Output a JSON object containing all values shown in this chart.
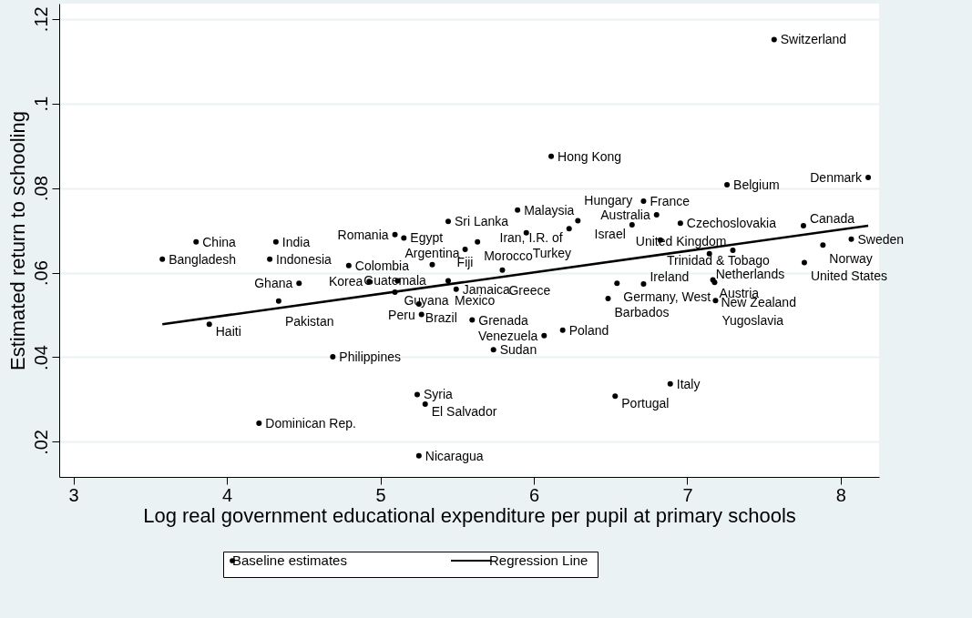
{
  "chart_data": {
    "type": "scatter",
    "xlabel": "Log real government educational expenditure per pupil at primary schools",
    "ylabel": "Estimated return to schooling",
    "xlim": [
      2.907,
      8.25
    ],
    "ylim": [
      0.0117,
      0.1236
    ],
    "xticks": [
      {
        "value": 3,
        "label": "3"
      },
      {
        "value": 4,
        "label": "4"
      },
      {
        "value": 5,
        "label": "5"
      },
      {
        "value": 6,
        "label": "6"
      },
      {
        "value": 7,
        "label": "7"
      },
      {
        "value": 8,
        "label": "8"
      }
    ],
    "yticks": [
      {
        "value": 0.02,
        "label": ".02"
      },
      {
        "value": 0.04,
        "label": ".04"
      },
      {
        "value": 0.06,
        "label": ".06"
      },
      {
        "value": 0.08,
        "label": ".08"
      },
      {
        "value": 0.1,
        "label": ".1"
      },
      {
        "value": 0.12,
        "label": ".12"
      }
    ],
    "grid": "y",
    "legend": "bottom",
    "marker": "circle",
    "series": [
      {
        "name": "Baseline estimates",
        "color": "#000000",
        "x": [
          7.566,
          6.113,
          8.179,
          7.259,
          6.715,
          5.894,
          6.8,
          6.287,
          5.442,
          6.955,
          6.64,
          6.23,
          7.757,
          3.799,
          4.319,
          5.095,
          5.153,
          5.951,
          8.069,
          5.633,
          6.825,
          7.884,
          5.552,
          3.579,
          4.279,
          7.297,
          7.144,
          7.763,
          4.794,
          5.338,
          5.795,
          4.927,
          5.112,
          5.442,
          4.47,
          5.494,
          5.095,
          6.542,
          6.715,
          7.167,
          7.178,
          4.337,
          6.484,
          7.184,
          5.251,
          5.268,
          3.885,
          5.598,
          6.188,
          6.067,
          5.737,
          4.69,
          6.889,
          6.53,
          5.24,
          5.292,
          4.209,
          5.251
        ],
        "values": [
          0.1151,
          0.0875,
          0.0825,
          0.0808,
          0.0769,
          0.0748,
          0.0737,
          0.0723,
          0.0721,
          0.0717,
          0.0713,
          0.0704,
          0.0711,
          0.0673,
          0.0673,
          0.069,
          0.0682,
          0.0694,
          0.0679,
          0.0673,
          0.0677,
          0.0665,
          0.0655,
          0.0632,
          0.0632,
          0.0653,
          0.0645,
          0.0624,
          0.0617,
          0.0619,
          0.0606,
          0.0579,
          0.0581,
          0.0581,
          0.0575,
          0.0561,
          0.0554,
          0.0575,
          0.0573,
          0.0583,
          0.0577,
          0.0533,
          0.0539,
          0.0534,
          0.0526,
          0.0501,
          0.0478,
          0.0488,
          0.0464,
          0.0451,
          0.0418,
          0.0401,
          0.0337,
          0.0308,
          0.0312,
          0.0289,
          0.0244,
          0.0167
        ]
      },
      {
        "name": "Regression Line",
        "type": "line",
        "color": "#000000",
        "line_style": "solid",
        "marker": "none",
        "x": [
          3.579,
          8.179
        ],
        "values": [
          0.0478,
          0.0711
        ]
      }
    ],
    "annotations": [
      {
        "text": "Switzerland",
        "x": 7.566,
        "y": 0.1151
      },
      {
        "text": "Hong Kong",
        "x": 6.113,
        "y": 0.0875
      },
      {
        "text": "Denmark",
        "x": 8.179,
        "y": 0.0825
      },
      {
        "text": "Belgium",
        "x": 7.259,
        "y": 0.0808
      },
      {
        "text": "France",
        "x": 6.715,
        "y": 0.0769
      },
      {
        "text": "Malaysia",
        "x": 5.894,
        "y": 0.0748
      },
      {
        "text": "Australia",
        "x": 6.8,
        "y": 0.0737
      },
      {
        "text": "Hungary",
        "x": 6.287,
        "y": 0.0723
      },
      {
        "text": "Sri Lanka",
        "x": 5.442,
        "y": 0.0721
      },
      {
        "text": "Czechoslovakia",
        "x": 6.955,
        "y": 0.0717
      },
      {
        "text": "Israel",
        "x": 6.64,
        "y": 0.0713
      },
      {
        "text": "Iran, I.R. of",
        "x": 6.23,
        "y": 0.0704
      },
      {
        "text": "Canada",
        "x": 7.757,
        "y": 0.0711
      },
      {
        "text": "China",
        "x": 3.799,
        "y": 0.0673
      },
      {
        "text": "India",
        "x": 4.319,
        "y": 0.0673
      },
      {
        "text": "Romania",
        "x": 5.095,
        "y": 0.069
      },
      {
        "text": "Egypt",
        "x": 5.153,
        "y": 0.0682
      },
      {
        "text": "Turkey",
        "x": 5.951,
        "y": 0.0694
      },
      {
        "text": "Sweden",
        "x": 8.069,
        "y": 0.0679
      },
      {
        "text": "Morocco",
        "x": 5.633,
        "y": 0.0673
      },
      {
        "text": "Trinidad & Tobago",
        "x": 6.825,
        "y": 0.0677
      },
      {
        "text": "Norway",
        "x": 7.884,
        "y": 0.0665
      },
      {
        "text": "Fiji",
        "x": 5.552,
        "y": 0.0655
      },
      {
        "text": "Bangladesh",
        "x": 3.579,
        "y": 0.0632
      },
      {
        "text": "Indonesia",
        "x": 4.279,
        "y": 0.0632
      },
      {
        "text": "United Kingdom",
        "x": 7.297,
        "y": 0.0653
      },
      {
        "text": "Netherlands",
        "x": 7.144,
        "y": 0.0645
      },
      {
        "text": "United States",
        "x": 7.763,
        "y": 0.0624
      },
      {
        "text": "Colombia",
        "x": 4.794,
        "y": 0.0617
      },
      {
        "text": "Argentina",
        "x": 5.338,
        "y": 0.0619
      },
      {
        "text": "Greece",
        "x": 5.795,
        "y": 0.0606
      },
      {
        "text": "Korea",
        "x": 4.927,
        "y": 0.0579
      },
      {
        "text": "Guyana",
        "x": 5.112,
        "y": 0.0581
      },
      {
        "text": "Mexico",
        "x": 5.442,
        "y": 0.0581
      },
      {
        "text": "Ghana",
        "x": 4.47,
        "y": 0.0575
      },
      {
        "text": "Jamaica",
        "x": 5.494,
        "y": 0.0561
      },
      {
        "text": "Guatemala",
        "x": 5.095,
        "y": 0.0554
      },
      {
        "text": "Germany, West",
        "x": 6.542,
        "y": 0.0575
      },
      {
        "text": "Ireland",
        "x": 6.715,
        "y": 0.0573
      },
      {
        "text": "Austria",
        "x": 7.167,
        "y": 0.0583
      },
      {
        "text": "New Zealand",
        "x": 7.178,
        "y": 0.0577
      },
      {
        "text": "Pakistan",
        "x": 4.337,
        "y": 0.0533
      },
      {
        "text": "Barbados",
        "x": 6.484,
        "y": 0.0539
      },
      {
        "text": "Yugoslavia",
        "x": 7.184,
        "y": 0.0534
      },
      {
        "text": "Brazil",
        "x": 5.251,
        "y": 0.0526
      },
      {
        "text": "Peru",
        "x": 5.268,
        "y": 0.0501
      },
      {
        "text": "Haiti",
        "x": 3.885,
        "y": 0.0478
      },
      {
        "text": "Grenada",
        "x": 5.598,
        "y": 0.0488
      },
      {
        "text": "Poland",
        "x": 6.188,
        "y": 0.0464
      },
      {
        "text": "Venezuela",
        "x": 6.067,
        "y": 0.0451
      },
      {
        "text": "Sudan",
        "x": 5.737,
        "y": 0.0418
      },
      {
        "text": "Philippines",
        "x": 4.69,
        "y": 0.0401
      },
      {
        "text": "Italy",
        "x": 6.889,
        "y": 0.0337
      },
      {
        "text": "Portugal",
        "x": 6.53,
        "y": 0.0308
      },
      {
        "text": "Syria",
        "x": 5.24,
        "y": 0.0312
      },
      {
        "text": "El Salvador",
        "x": 5.292,
        "y": 0.0289
      },
      {
        "text": "Dominican Rep.",
        "x": 4.209,
        "y": 0.0244
      },
      {
        "text": "Nicaragua",
        "x": 5.251,
        "y": 0.0167
      }
    ]
  }
}
